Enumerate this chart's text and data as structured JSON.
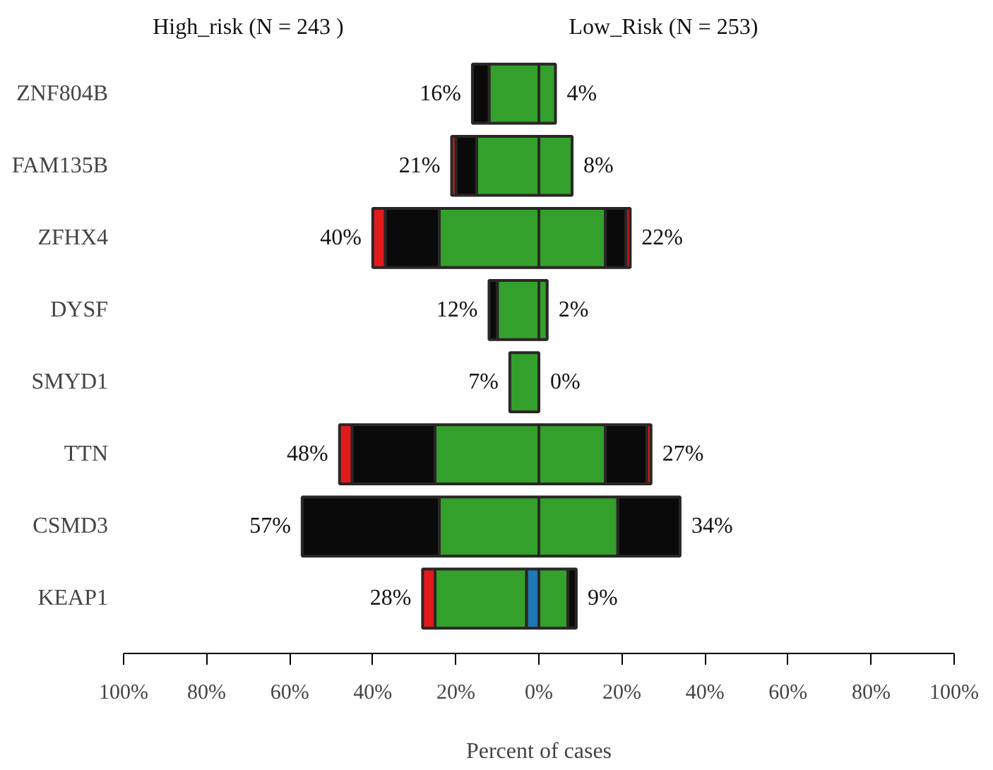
{
  "chart_data": {
    "type": "bar",
    "orientation": "horizontal",
    "stacked": true,
    "xlabel": "Percent of cases",
    "categories": [
      "ZNF804B",
      "FAM135B",
      "ZFHX4",
      "DYSF",
      "SMYD1",
      "TTN",
      "CSMD3",
      "KEAP1"
    ],
    "series": [
      {
        "color": "#1f78b4",
        "values": [
          0,
          0,
          0,
          0,
          0,
          0,
          0,
          -3
        ]
      },
      {
        "color": "#33a02c",
        "values": [
          -12,
          -15,
          -24,
          -10,
          -7,
          -25,
          -24,
          -22
        ]
      },
      {
        "color": "#0a0a0a",
        "values": [
          -4,
          -5,
          -13,
          -2,
          0,
          -20,
          -33,
          0
        ]
      },
      {
        "color": "#e31a1c",
        "values": [
          0,
          -1,
          -3,
          0,
          0,
          -3,
          0,
          -3
        ]
      },
      {
        "color": "#33a02c",
        "values": [
          4,
          8,
          16,
          2,
          0,
          16,
          19,
          7
        ]
      },
      {
        "color": "#0a0a0a",
        "values": [
          0,
          0,
          5,
          0,
          0,
          10,
          15,
          2
        ]
      },
      {
        "color": "#e31a1c",
        "values": [
          0,
          0,
          1,
          0,
          0,
          1,
          0,
          0
        ]
      }
    ],
    "xlim": [
      -100,
      100
    ],
    "xticks": [
      {
        "value": -100,
        "label": "100%"
      },
      {
        "value": -80,
        "label": "80%"
      },
      {
        "value": -60,
        "label": "60%"
      },
      {
        "value": -40,
        "label": "40%"
      },
      {
        "value": -20,
        "label": "20%"
      },
      {
        "value": 0,
        "label": "0%"
      },
      {
        "value": 20,
        "label": "20%"
      },
      {
        "value": 40,
        "label": "40%"
      },
      {
        "value": 60,
        "label": "60%"
      },
      {
        "value": 80,
        "label": "80%"
      },
      {
        "value": 100,
        "label": "100%"
      }
    ],
    "annotations": [
      "High_risk (N = 243 )",
      "Low_Risk (N = 253)",
      {
        "text": "16%",
        "x": -16,
        "y": "ZNF804B"
      },
      {
        "text": "4%",
        "x": 4,
        "y": "ZNF804B"
      },
      {
        "text": "21%",
        "x": -21,
        "y": "FAM135B"
      },
      {
        "text": "8%",
        "x": 8,
        "y": "FAM135B"
      },
      {
        "text": "40%",
        "x": -40,
        "y": "ZFHX4"
      },
      {
        "text": "22%",
        "x": 22,
        "y": "ZFHX4"
      },
      {
        "text": "12%",
        "x": -12,
        "y": "DYSF"
      },
      {
        "text": "2%",
        "x": 2,
        "y": "DYSF"
      },
      {
        "text": "7%",
        "x": -7,
        "y": "SMYD1"
      },
      {
        "text": "0%",
        "x": 0,
        "y": "SMYD1"
      },
      {
        "text": "48%",
        "x": -48,
        "y": "TTN"
      },
      {
        "text": "27%",
        "x": 27,
        "y": "TTN"
      },
      {
        "text": "57%",
        "x": -57,
        "y": "CSMD3"
      },
      {
        "text": "34%",
        "x": 34,
        "y": "CSMD3"
      },
      {
        "text": "28%",
        "x": -28,
        "y": "KEAP1"
      },
      {
        "text": "9%",
        "x": 9,
        "y": "KEAP1"
      }
    ]
  }
}
